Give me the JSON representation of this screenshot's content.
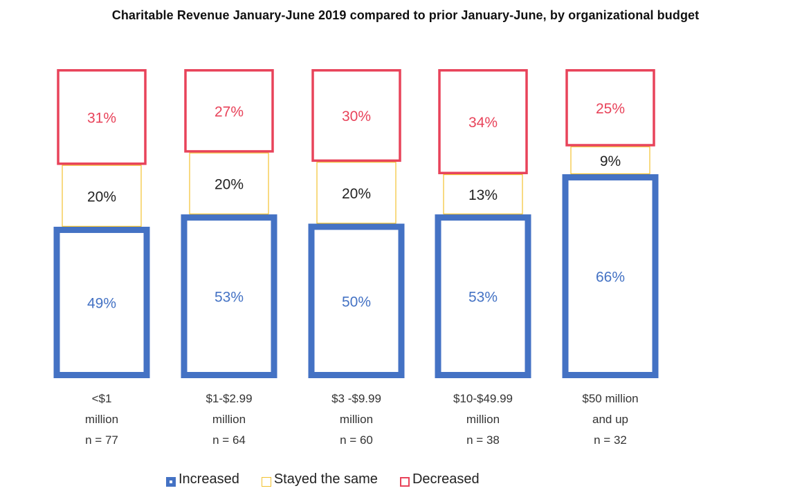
{
  "chart_data": {
    "type": "bar",
    "stacked": true,
    "title": "Charitable Revenue January-June 2019 compared to prior January-June, by organizational budget",
    "xlabel": "",
    "ylabel": "",
    "ylim": [
      0,
      100
    ],
    "grid": false,
    "legend_position": "bottom",
    "categories": [
      {
        "lines": [
          "<$1",
          "million",
          "n = 77"
        ]
      },
      {
        "lines": [
          "$1-$2.99",
          "million",
          "n = 64"
        ]
      },
      {
        "lines": [
          "$3 -$9.99",
          "million",
          "n = 60"
        ]
      },
      {
        "lines": [
          "$10-$49.99",
          "million",
          "n = 38"
        ]
      },
      {
        "lines": [
          "$50 million",
          "and up",
          "n = 32"
        ]
      }
    ],
    "series": [
      {
        "name": "Increased",
        "color": "#4472c4",
        "values": [
          49,
          53,
          50,
          53,
          66
        ],
        "labels": [
          "49%",
          "53%",
          "50%",
          "53%",
          "66%"
        ]
      },
      {
        "name": "Stayed the same",
        "color": "#f2c12e",
        "values": [
          20,
          20,
          20,
          13,
          9
        ],
        "labels": [
          "20%",
          "20%",
          "20%",
          "13%",
          "9%"
        ]
      },
      {
        "name": "Decreased",
        "color": "#e8435a",
        "values": [
          31,
          27,
          30,
          34,
          25
        ],
        "labels": [
          "31%",
          "27%",
          "30%",
          "34%",
          "25%"
        ]
      }
    ]
  },
  "legend": {
    "items": [
      "Increased",
      "Stayed the same",
      "Decreased"
    ]
  }
}
